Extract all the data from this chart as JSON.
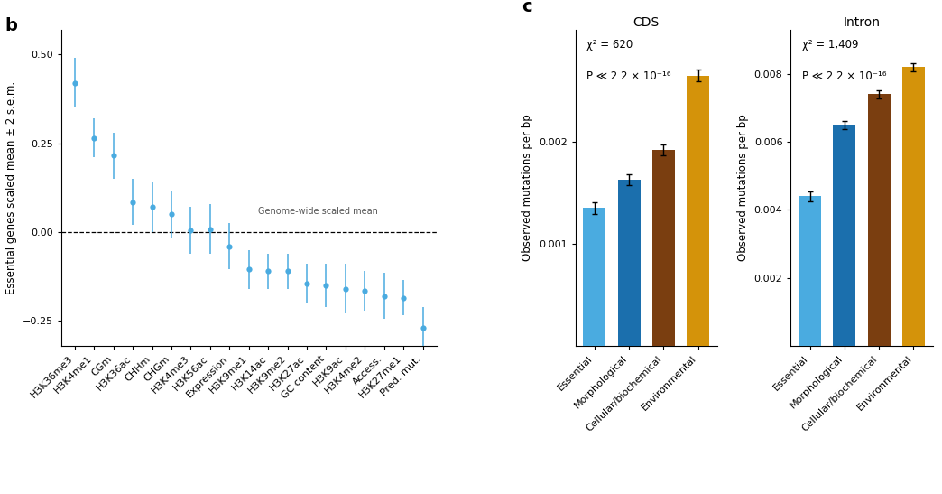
{
  "panel_b_label": "b",
  "panel_c_label": "c",
  "scatter_categories": [
    "H3K36me3",
    "H3K4me1",
    "CGm",
    "H3K36ac",
    "CHHm",
    "CHGm",
    "H3K4me3",
    "H3K56ac",
    "Expression",
    "H3K9me1",
    "H3K14ac",
    "H3K9me2",
    "H3K27ac",
    "GC content",
    "H3K9ac",
    "H3K4me2",
    "Access.",
    "H3K27me1",
    "Pred. mut."
  ],
  "scatter_means": [
    0.42,
    0.265,
    0.215,
    0.085,
    0.07,
    0.05,
    0.005,
    0.008,
    -0.04,
    -0.105,
    -0.11,
    -0.11,
    -0.145,
    -0.15,
    -0.16,
    -0.165,
    -0.18,
    -0.185,
    -0.27
  ],
  "scatter_errors": [
    0.07,
    0.055,
    0.065,
    0.065,
    0.07,
    0.065,
    0.065,
    0.07,
    0.065,
    0.055,
    0.05,
    0.05,
    0.055,
    0.06,
    0.07,
    0.055,
    0.065,
    0.05,
    0.06
  ],
  "scatter_color": "#4aabe0",
  "scatter_ylabel": "Essential genes scaled mean ± 2 s.e.m.",
  "scatter_annotation": "Genome-wide scaled mean",
  "ylim_b": [
    -0.32,
    0.57
  ],
  "yticks_b": [
    -0.25,
    0.0,
    0.25,
    0.5
  ],
  "cds_title": "CDS",
  "cds_stat": "χ² = 620",
  "cds_pval": "P ≪ 2.2 × 10⁻¹⁶",
  "cds_categories": [
    "Essential",
    "Morphological",
    "Cellular/biochemical",
    "Environmental"
  ],
  "cds_values": [
    0.00135,
    0.00163,
    0.00192,
    0.00265
  ],
  "cds_errors": [
    6e-05,
    5.5e-05,
    5.5e-05,
    6e-05
  ],
  "cds_colors": [
    "#4aabe0",
    "#1b6fad",
    "#7a3e10",
    "#d4930a"
  ],
  "cds_ylabel": "Observed mutations per bp",
  "cds_ylim": [
    0,
    0.0031
  ],
  "cds_yticks": [
    0.001,
    0.002
  ],
  "cds_yticklabels": [
    "0.001",
    "0.002"
  ],
  "intron_title": "Intron",
  "intron_stat": "χ² = 1,409",
  "intron_pval": "P ≪ 2.2 × 10⁻¹⁶",
  "intron_categories": [
    "Essential",
    "Morphological",
    "Cellular/biochemical",
    "Environmental"
  ],
  "intron_values": [
    0.0044,
    0.0065,
    0.0074,
    0.0082
  ],
  "intron_errors": [
    0.00015,
    0.00012,
    0.00012,
    0.00012
  ],
  "intron_colors": [
    "#4aabe0",
    "#1b6fad",
    "#7a3e10",
    "#d4930a"
  ],
  "intron_ylabel": "Observed mutations per bp",
  "intron_ylim": [
    0,
    0.0093
  ],
  "intron_yticks": [
    0.002,
    0.004,
    0.006,
    0.008
  ],
  "intron_yticklabels": [
    "0.002",
    "0.004",
    "0.006",
    "0.008"
  ],
  "bg_color": "#ffffff",
  "label_fontsize": 8.5,
  "tick_fontsize": 8,
  "title_fontsize": 10,
  "panel_label_fontsize": 14,
  "stat_fontsize": 8.5
}
